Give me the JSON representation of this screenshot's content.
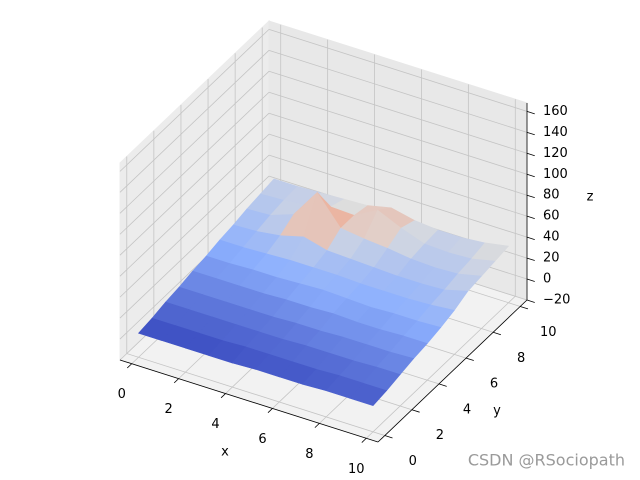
{
  "chart_data": {
    "type": "surface3d",
    "colormap": "coolwarm",
    "x": [
      0,
      1,
      2,
      3,
      4,
      5,
      6,
      7,
      8,
      9,
      10
    ],
    "y": [
      0,
      1,
      2,
      3,
      4,
      5,
      6,
      7,
      8,
      9,
      10
    ],
    "z": [
      [
        3,
        3,
        3,
        3,
        3,
        4,
        4,
        4,
        5,
        5,
        5
      ],
      [
        5,
        5,
        5,
        5,
        6,
        6,
        6,
        6,
        7,
        7,
        7
      ],
      [
        8,
        8,
        8,
        8,
        8,
        8,
        9,
        9,
        9,
        10,
        10
      ],
      [
        10,
        10,
        10,
        10,
        10,
        11,
        11,
        12,
        12,
        12,
        13
      ],
      [
        13,
        13,
        13,
        13,
        14,
        14,
        15,
        14,
        14,
        15,
        15
      ],
      [
        15,
        15,
        16,
        16,
        17,
        18,
        17,
        16,
        17,
        17,
        18
      ],
      [
        18,
        18,
        19,
        20,
        20,
        20,
        19,
        19,
        19,
        20,
        22
      ],
      [
        20,
        21,
        24,
        30,
        24,
        23,
        22,
        21,
        21,
        22,
        28
      ],
      [
        23,
        24,
        32,
        60,
        33,
        30,
        28,
        25,
        24,
        25,
        30
      ],
      [
        25,
        26,
        28,
        34,
        33,
        45,
        35,
        27,
        26,
        27,
        32
      ],
      [
        27,
        27,
        28,
        29,
        30,
        35,
        30,
        28,
        28,
        30,
        34
      ]
    ],
    "xlim": [
      -0.5,
      10.5
    ],
    "ylim": [
      -0.5,
      10.5
    ],
    "zlim": [
      -20,
      168
    ],
    "xticks": [
      0,
      2,
      4,
      6,
      8,
      10
    ],
    "yticks": [
      0,
      2,
      4,
      6,
      8,
      10
    ],
    "zticks": [
      {
        "value": -20,
        "label": "−20"
      },
      0,
      20,
      40,
      60,
      80,
      100,
      120,
      140,
      160
    ],
    "xlabel": "x",
    "ylabel": "y",
    "zlabel": "z",
    "grid": true
  },
  "watermark": "CSDN @RSociopath"
}
